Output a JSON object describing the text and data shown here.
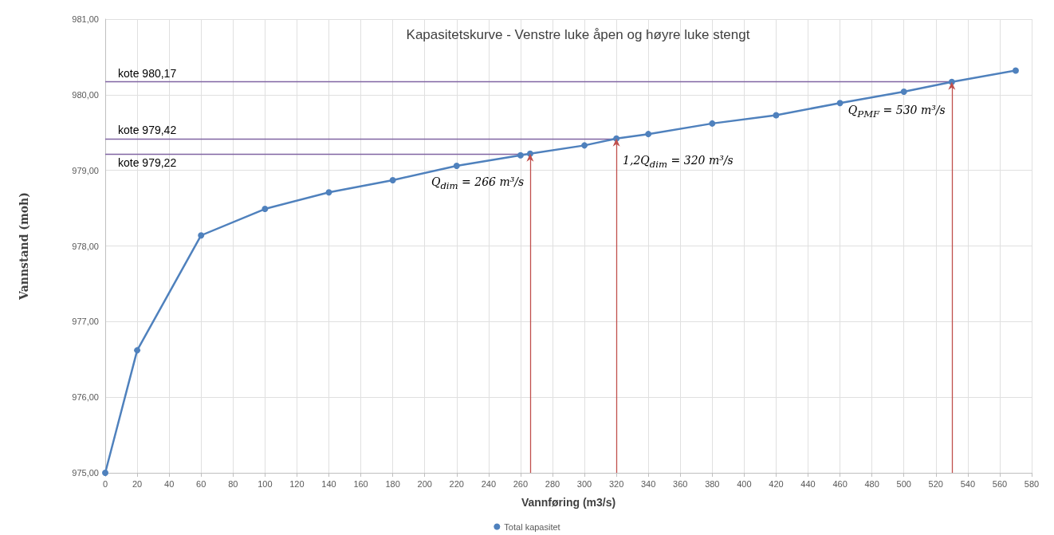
{
  "chart_data": {
    "type": "line",
    "title": "Kapasitetskurve - Venstre luke åpen og høyre luke stengt",
    "xlabel": "Vannføring (m3/s)",
    "ylabel": "Vannstand (moh)",
    "x": [
      0,
      20,
      60,
      100,
      140,
      180,
      220,
      260,
      266,
      300,
      320,
      340,
      380,
      420,
      460,
      500,
      530,
      570
    ],
    "series": [
      {
        "name": "Total kapasitet",
        "color": "#4f81bd",
        "values": [
          975.0,
          976.62,
          978.14,
          978.49,
          978.71,
          978.87,
          979.06,
          979.2,
          979.22,
          979.33,
          979.42,
          979.48,
          979.62,
          979.73,
          979.89,
          980.04,
          980.17,
          980.32
        ]
      }
    ],
    "xlim": [
      0,
      580
    ],
    "xticks": [
      0,
      20,
      40,
      60,
      80,
      100,
      120,
      140,
      160,
      180,
      200,
      220,
      240,
      260,
      280,
      300,
      320,
      340,
      360,
      380,
      400,
      420,
      440,
      460,
      480,
      500,
      520,
      540,
      560,
      580
    ],
    "ylim": [
      975,
      981
    ],
    "yticks": [
      {
        "value": 975,
        "label": "975,00"
      },
      {
        "value": 976,
        "label": "976,00"
      },
      {
        "value": 977,
        "label": "977,00"
      },
      {
        "value": 978,
        "label": "978,00"
      },
      {
        "value": 979,
        "label": "979,00"
      },
      {
        "value": 980,
        "label": "980,00"
      },
      {
        "value": 981,
        "label": "981,00"
      }
    ],
    "ref_lines": [
      {
        "axis": "y",
        "value": 980.17,
        "label": "kote 980,17",
        "color": "#8064a2"
      },
      {
        "axis": "y",
        "value": 979.42,
        "label": "kote 979,42",
        "color": "#8064a2"
      },
      {
        "axis": "y",
        "value": 979.22,
        "label": "kote 979,22",
        "color": "#8064a2"
      },
      {
        "axis": "x",
        "value": 266,
        "label": "Q$_{dim}$ = 266 m³/s",
        "color": "#c0504d"
      },
      {
        "axis": "x",
        "value": 320,
        "label": "1,2Q$_{dim}$ = 320 m³/s",
        "color": "#c0504d"
      },
      {
        "axis": "x",
        "value": 530,
        "label": "Q$_{PMF}$ = 530 m³/s",
        "color": "#c0504d"
      }
    ],
    "grid": true,
    "legend": "bottom",
    "marker": "circle",
    "line_style": "solid"
  }
}
